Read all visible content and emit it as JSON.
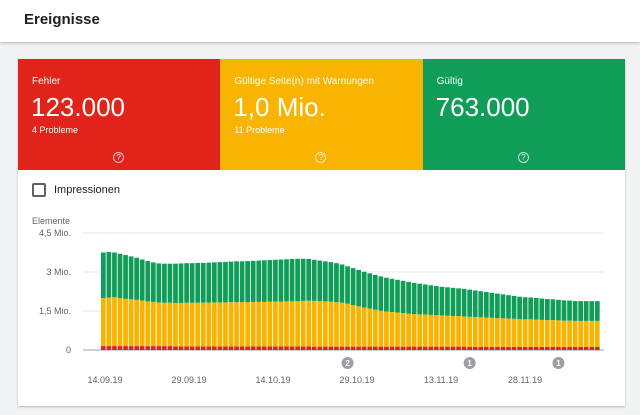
{
  "header": {
    "title": "Ereignisse"
  },
  "tiles": [
    {
      "label": "Fehler",
      "value": "123.000",
      "sub": "4 Probleme",
      "color": "#e2231a"
    },
    {
      "label": "Gültige Seite(n) mit Warnungen",
      "value": "1,0 Mio.",
      "sub": "11 Probleme",
      "color": "#f8b400"
    },
    {
      "label": "Gültig",
      "value": "763.000",
      "sub": "",
      "color": "#0f9d58"
    }
  ],
  "help_glyph": "?",
  "impressions_toggle": {
    "label": "Impressionen",
    "checked": false
  },
  "chart_data": {
    "type": "bar",
    "stacked": true,
    "ylabel": "Elemente",
    "ylim": [
      0,
      4.5
    ],
    "y_ticks": [
      "0",
      "1,5 Mio.",
      "3 Mio.",
      "4,5 Mio."
    ],
    "x_tick_labels": [
      "14.09.19",
      "29.09.19",
      "14.10.19",
      "29.10.19",
      "13.11.19",
      "28.11.19"
    ],
    "annotations": [
      {
        "label": "2",
        "date_index": 44
      },
      {
        "label": "1",
        "date_index": 66
      },
      {
        "label": "1",
        "date_index": 82
      }
    ],
    "series_colors": {
      "Fehler": "#e2231a",
      "Gültige Seite(n) mit Warnungen": "#f8b400",
      "Gültig": "#0f9d58"
    },
    "series": [
      {
        "name": "Fehler",
        "values": [
          0.15,
          0.15,
          0.15,
          0.15,
          0.15,
          0.15,
          0.15,
          0.15,
          0.15,
          0.15,
          0.15,
          0.15,
          0.15,
          0.14,
          0.14,
          0.14,
          0.14,
          0.14,
          0.14,
          0.14,
          0.14,
          0.14,
          0.14,
          0.14,
          0.14,
          0.14,
          0.14,
          0.14,
          0.14,
          0.14,
          0.14,
          0.14,
          0.14,
          0.14,
          0.14,
          0.14,
          0.14,
          0.14,
          0.13,
          0.13,
          0.13,
          0.13,
          0.13,
          0.13,
          0.13,
          0.13,
          0.13,
          0.13,
          0.13,
          0.13,
          0.13,
          0.13,
          0.13,
          0.13,
          0.13,
          0.13,
          0.13,
          0.13,
          0.13,
          0.13,
          0.13,
          0.13,
          0.13,
          0.13,
          0.13,
          0.13,
          0.12,
          0.12,
          0.12,
          0.12,
          0.12,
          0.12,
          0.12,
          0.12,
          0.12,
          0.12,
          0.12,
          0.12,
          0.12,
          0.12,
          0.12,
          0.12,
          0.12,
          0.12,
          0.12,
          0.12,
          0.12,
          0.12,
          0.12,
          0.12
        ]
      },
      {
        "name": "Gültige Seite(n) mit Warnungen",
        "values": [
          1.85,
          1.87,
          1.88,
          1.85,
          1.82,
          1.8,
          1.78,
          1.75,
          1.72,
          1.7,
          1.68,
          1.67,
          1.67,
          1.67,
          1.67,
          1.68,
          1.68,
          1.68,
          1.68,
          1.68,
          1.69,
          1.69,
          1.69,
          1.7,
          1.7,
          1.7,
          1.7,
          1.71,
          1.71,
          1.71,
          1.72,
          1.72,
          1.72,
          1.73,
          1.73,
          1.74,
          1.75,
          1.76,
          1.76,
          1.75,
          1.74,
          1.73,
          1.71,
          1.69,
          1.65,
          1.6,
          1.55,
          1.5,
          1.46,
          1.42,
          1.38,
          1.35,
          1.33,
          1.31,
          1.29,
          1.27,
          1.25,
          1.24,
          1.23,
          1.22,
          1.21,
          1.2,
          1.19,
          1.18,
          1.17,
          1.16,
          1.16,
          1.15,
          1.14,
          1.13,
          1.12,
          1.11,
          1.1,
          1.09,
          1.08,
          1.07,
          1.06,
          1.06,
          1.05,
          1.04,
          1.03,
          1.03,
          1.02,
          1.01,
          1.01,
          1.0,
          1.0,
          1.0,
          1.0,
          1.0
        ]
      },
      {
        "name": "Gültig",
        "values": [
          1.75,
          1.75,
          1.72,
          1.7,
          1.68,
          1.65,
          1.62,
          1.58,
          1.55,
          1.52,
          1.5,
          1.5,
          1.5,
          1.51,
          1.52,
          1.52,
          1.52,
          1.53,
          1.53,
          1.54,
          1.54,
          1.55,
          1.56,
          1.56,
          1.57,
          1.57,
          1.58,
          1.58,
          1.59,
          1.6,
          1.6,
          1.61,
          1.62,
          1.62,
          1.63,
          1.63,
          1.62,
          1.6,
          1.58,
          1.56,
          1.54,
          1.52,
          1.5,
          1.47,
          1.44,
          1.42,
          1.4,
          1.38,
          1.36,
          1.34,
          1.32,
          1.3,
          1.28,
          1.26,
          1.24,
          1.22,
          1.2,
          1.18,
          1.16,
          1.14,
          1.12,
          1.1,
          1.09,
          1.08,
          1.07,
          1.06,
          1.04,
          1.02,
          1.0,
          0.98,
          0.96,
          0.94,
          0.92,
          0.9,
          0.88,
          0.86,
          0.85,
          0.84,
          0.83,
          0.82,
          0.81,
          0.8,
          0.79,
          0.78,
          0.77,
          0.76,
          0.76,
          0.76,
          0.76,
          0.76
        ]
      }
    ]
  }
}
